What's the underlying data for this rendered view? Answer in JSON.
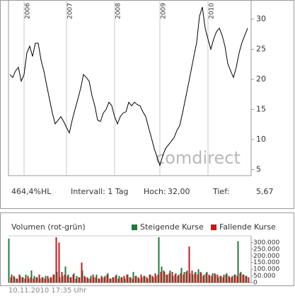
{
  "chart_data": [
    {
      "type": "line",
      "categories": [
        null,
        null,
        null,
        null,
        null,
        "2006",
        null,
        null,
        null,
        null,
        null,
        null,
        null,
        null,
        null,
        null,
        null,
        null,
        null,
        null,
        "2007",
        null,
        null,
        null,
        null,
        null,
        null,
        null,
        null,
        null,
        null,
        null,
        null,
        null,
        null,
        null,
        null,
        "2008",
        null,
        null,
        null,
        null,
        null,
        null,
        null,
        null,
        null,
        null,
        null,
        null,
        null,
        null,
        null,
        "2009",
        null,
        null,
        null,
        null,
        null,
        null,
        null,
        null,
        null,
        null,
        null,
        null,
        null,
        null,
        null,
        null,
        "2010",
        null,
        null,
        null,
        null,
        null,
        null,
        null,
        null,
        null,
        null,
        null,
        null,
        null,
        null
      ],
      "series": [
        {
          "color": "#000000",
          "values": [
            20.8,
            20.3,
            21.4,
            22,
            19.7,
            20.8,
            24.4,
            25.5,
            23.8,
            26,
            26,
            23.2,
            21.4,
            19,
            16.7,
            14.4,
            12.6,
            13.2,
            13.8,
            13,
            12,
            11.1,
            13.2,
            15,
            16.7,
            18.5,
            20.8,
            20.3,
            19.7,
            17.3,
            15.6,
            13.2,
            13,
            14.4,
            15,
            16.2,
            15.6,
            13.8,
            12.6,
            13.8,
            14.4,
            14.6,
            16.2,
            15.6,
            16.2,
            15.8,
            15.6,
            14.6,
            13.8,
            12,
            10.3,
            8.5,
            7.1,
            5.7,
            7.3,
            8.5,
            9.1,
            9.7,
            10.3,
            11.5,
            12.3,
            14.4,
            16.7,
            19,
            21.4,
            23.8,
            26.1,
            30.5,
            32.0,
            28.5,
            26.7,
            25,
            26.7,
            27.9,
            28.5,
            27.3,
            25.5,
            22.6,
            21.4,
            20.3,
            22,
            24.4,
            26.1,
            27.3,
            28.5
          ]
        }
      ],
      "ylim": [
        4,
        32
      ],
      "yticks": [
        5,
        10,
        15,
        20,
        25,
        30
      ],
      "grid": true,
      "watermark": "comdirect",
      "annotations": [
        "464,4%HL",
        "Intervall: 1 Tag",
        "Hoch:",
        "32,00",
        "Tief:",
        "5,67"
      ]
    },
    {
      "type": "bar",
      "title": "Volumen (rot-grün)",
      "series": [
        {
          "name": "Steigende Kurse",
          "color": "#1e7b3c",
          "values": [
            330000,
            60000,
            40000,
            30000,
            50000,
            40000,
            60000,
            30000,
            90000,
            50000,
            40000,
            30000,
            40000,
            50000,
            30000,
            40000,
            60000,
            80000,
            40000,
            50000,
            120000,
            60000,
            40000,
            70000,
            50000,
            40000,
            90000,
            40000,
            30000,
            50000,
            40000,
            60000,
            30000,
            40000,
            50000,
            70000,
            30000,
            40000,
            60000,
            50000,
            40000,
            30000,
            60000,
            40000,
            80000,
            50000,
            30000,
            40000,
            50000,
            30000,
            60000,
            40000,
            50000,
            340000,
            120000,
            80000,
            60000,
            90000,
            50000,
            70000,
            60000,
            110000,
            80000,
            90000,
            70000,
            60000,
            80000,
            100000,
            70000,
            60000,
            80000,
            50000,
            70000,
            60000,
            40000,
            50000,
            60000,
            70000,
            40000,
            50000,
            60000,
            310000,
            80000,
            60000,
            50000
          ]
        },
        {
          "name": "Fallende Kurse",
          "color": "#c8171e",
          "values": [
            40000,
            50000,
            30000,
            60000,
            40000,
            30000,
            50000,
            40000,
            30000,
            40000,
            60000,
            40000,
            30000,
            50000,
            40000,
            60000,
            340000,
            300000,
            80000,
            60000,
            50000,
            40000,
            60000,
            30000,
            40000,
            150000,
            50000,
            40000,
            30000,
            60000,
            40000,
            30000,
            50000,
            40000,
            60000,
            30000,
            40000,
            50000,
            30000,
            40000,
            50000,
            60000,
            40000,
            30000,
            50000,
            40000,
            60000,
            50000,
            40000,
            60000,
            50000,
            70000,
            60000,
            80000,
            90000,
            60000,
            70000,
            80000,
            60000,
            50000,
            70000,
            60000,
            80000,
            270000,
            90000,
            70000,
            60000,
            80000,
            50000,
            70000,
            60000,
            50000,
            70000,
            60000,
            50000,
            40000,
            60000,
            50000,
            40000,
            60000,
            50000,
            70000,
            60000,
            50000,
            40000
          ]
        }
      ],
      "ylim": [
        0,
        350000
      ],
      "yticks": [
        0,
        {
          "value": 50000,
          "label": "50.000"
        },
        {
          "value": 100000,
          "label": "100.000"
        },
        {
          "value": 150000,
          "label": "150.000"
        },
        {
          "value": 200000,
          "label": "200.000"
        },
        {
          "value": 250000,
          "label": "250.000"
        },
        {
          "value": 300000,
          "label": "300.000"
        }
      ],
      "footnote": "10.11.2010 17:35 Uhr"
    }
  ]
}
